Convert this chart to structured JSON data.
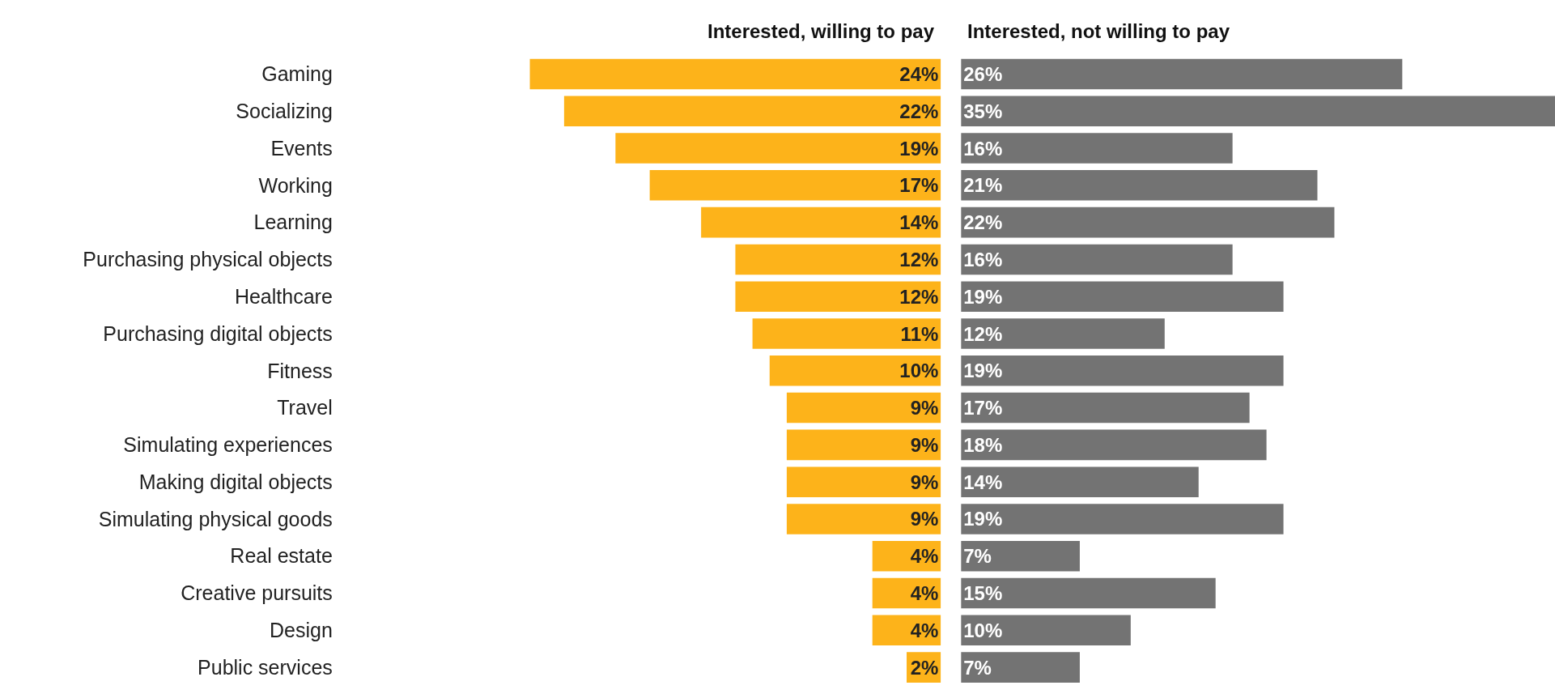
{
  "chart_data": [
    {
      "type": "bar",
      "orientation": "horizontal",
      "title": "Interested, willing to pay",
      "categories": [
        "Gaming",
        "Socializing",
        "Events",
        "Working",
        "Learning",
        "Purchasing physical objects",
        "Healthcare",
        "Purchasing digital objects",
        "Fitness",
        "Travel",
        "Simulating experiences",
        "Making digital objects",
        "Simulating physical goods",
        "Real estate",
        "Creative pursuits",
        "Design",
        "Public services"
      ],
      "series": [
        {
          "color": "#fdb31a",
          "values": [
            24,
            22,
            19,
            17,
            14,
            12,
            12,
            11,
            10,
            9,
            9,
            9,
            9,
            4,
            4,
            4,
            2
          ],
          "value_labels": [
            "24%",
            "22%",
            "19%",
            "17%",
            "14%",
            "12%",
            "12%",
            "11%",
            "10%",
            "9%",
            "9%",
            "9%",
            "9%",
            "4%",
            "4%",
            "4%",
            "2%"
          ]
        }
      ],
      "tick_labels": "y"
    },
    {
      "type": "bar",
      "orientation": "horizontal",
      "title": "Interested, not willing to pay",
      "categories": [
        "Gaming",
        "Socializing",
        "Events",
        "Working",
        "Learning",
        "Purchasing physical objects",
        "Healthcare",
        "Purchasing digital objects",
        "Fitness",
        "Travel",
        "Simulating experiences",
        "Making digital objects",
        "Simulating physical goods",
        "Real estate",
        "Creative pursuits",
        "Design",
        "Public services"
      ],
      "series": [
        {
          "color": "#737373",
          "values": [
            26,
            35,
            16,
            21,
            22,
            16,
            19,
            12,
            19,
            17,
            18,
            14,
            19,
            7,
            15,
            10,
            7
          ],
          "value_labels": [
            "26%",
            "35%",
            "16%",
            "21%",
            "22%",
            "16%",
            "19%",
            "12%",
            "19%",
            "17%",
            "18%",
            "14%",
            "19%",
            "7%",
            "15%",
            "10%",
            "7%"
          ]
        }
      ],
      "tick_labels": false
    }
  ]
}
